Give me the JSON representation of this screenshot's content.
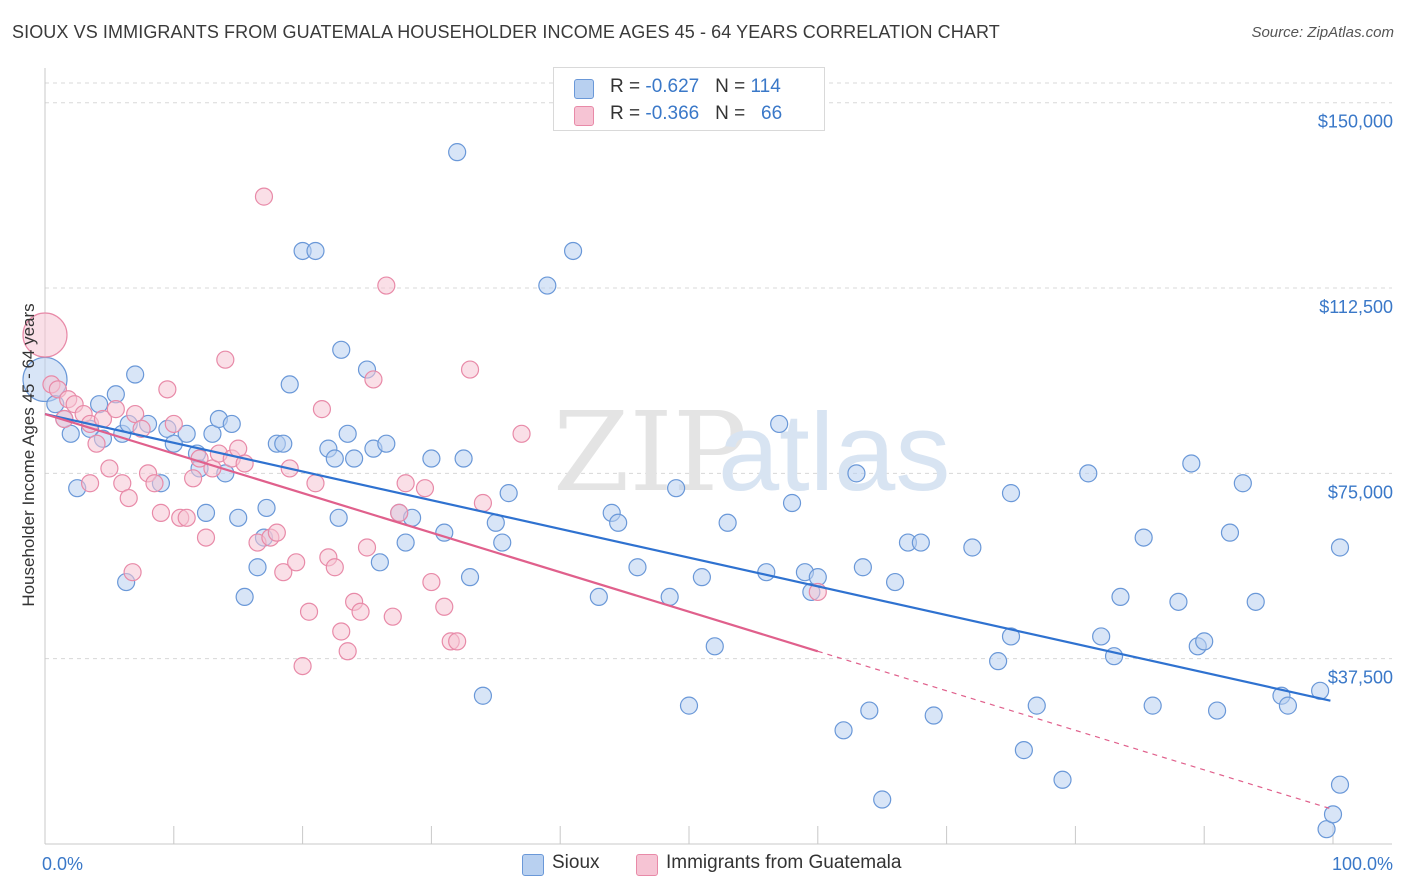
{
  "header": {
    "title": "SIOUX VS IMMIGRANTS FROM GUATEMALA HOUSEHOLDER INCOME AGES 45 - 64 YEARS CORRELATION CHART",
    "source": "Source: ZipAtlas.com"
  },
  "watermark": {
    "zip": "ZIP",
    "atlas": "atlas"
  },
  "legend_top": [
    {
      "r_label": "R = ",
      "r_value": "-0.627",
      "n_label": "N = ",
      "n_value": "114"
    },
    {
      "r_label": "R = ",
      "r_value": "-0.366",
      "n_label": "N = ",
      "n_value": "66"
    }
  ],
  "legend_bottom": [
    "Sioux",
    "Immigrants from Guatemala"
  ],
  "colors": {
    "sioux_fill": "#b8d0f0",
    "sioux_stroke": "#6a98d8",
    "sioux_line": "#2f72d0",
    "guat_fill": "#f6c4d4",
    "guat_stroke": "#e88aa8",
    "guat_line": "#e0608c",
    "tick": "#3a78c8",
    "grid": "#d8d8d8"
  },
  "chart_data": {
    "type": "scatter",
    "title": "SIOUX VS IMMIGRANTS FROM GUATEMALA HOUSEHOLDER INCOME AGES 45 - 64 YEARS CORRELATION CHART",
    "xlabel": "",
    "ylabel": "Householder Income Ages 45 - 64 years",
    "xlim": [
      0,
      100
    ],
    "ylim": [
      0,
      155000
    ],
    "x_tick_labels": [
      "0.0%",
      "100.0%"
    ],
    "y_ticks": [
      37500,
      75000,
      112500,
      150000
    ],
    "y_tick_labels": [
      "$37,500",
      "$75,000",
      "$112,500",
      "$150,000"
    ],
    "grid": true,
    "legend_position": "top-center",
    "series": [
      {
        "name": "Sioux",
        "r": -0.627,
        "n": 114,
        "trend": {
          "x": [
            0,
            99.8
          ],
          "y": [
            87000,
            29000
          ]
        },
        "points": [
          [
            0,
            94000,
            30
          ],
          [
            0.8,
            89000,
            12
          ],
          [
            1.5,
            86000,
            12
          ],
          [
            2,
            83000,
            12
          ],
          [
            2.5,
            72000,
            12
          ],
          [
            3.5,
            84000,
            12
          ],
          [
            4.2,
            89000,
            12
          ],
          [
            4.5,
            82000,
            12
          ],
          [
            5.5,
            91000,
            12
          ],
          [
            6,
            83000,
            12
          ],
          [
            6.5,
            85000,
            12
          ],
          [
            6.3,
            53000,
            12
          ],
          [
            7,
            95000,
            12
          ],
          [
            8,
            85000,
            12
          ],
          [
            9,
            73000,
            12
          ],
          [
            9.5,
            84000,
            12
          ],
          [
            10,
            81000,
            12
          ],
          [
            11,
            83000,
            12
          ],
          [
            11.8,
            79000,
            12
          ],
          [
            12,
            76000,
            12
          ],
          [
            12.5,
            67000,
            12
          ],
          [
            13,
            83000,
            12
          ],
          [
            13.5,
            86000,
            12
          ],
          [
            14,
            75000,
            12
          ],
          [
            14.5,
            85000,
            12
          ],
          [
            15,
            66000,
            12
          ],
          [
            15.5,
            50000,
            12
          ],
          [
            16.5,
            56000,
            12
          ],
          [
            17,
            62000,
            12
          ],
          [
            17.2,
            68000,
            12
          ],
          [
            18,
            81000,
            12
          ],
          [
            18.5,
            81000,
            12
          ],
          [
            19,
            93000,
            12
          ],
          [
            20,
            120000,
            12
          ],
          [
            21,
            120000,
            12
          ],
          [
            22,
            80000,
            12
          ],
          [
            22.5,
            78000,
            12
          ],
          [
            22.8,
            66000,
            12
          ],
          [
            23,
            100000,
            12
          ],
          [
            23.5,
            83000,
            12
          ],
          [
            24,
            78000,
            12
          ],
          [
            25,
            96000,
            12
          ],
          [
            25.5,
            80000,
            12
          ],
          [
            26,
            57000,
            12
          ],
          [
            26.5,
            81000,
            12
          ],
          [
            27.5,
            67000,
            12
          ],
          [
            28,
            61000,
            12
          ],
          [
            28.5,
            66000,
            12
          ],
          [
            30,
            78000,
            12
          ],
          [
            31,
            63000,
            12
          ],
          [
            32,
            140000,
            12
          ],
          [
            32.5,
            78000,
            12
          ],
          [
            33,
            54000,
            12
          ],
          [
            34,
            30000,
            12
          ],
          [
            35,
            65000,
            12
          ],
          [
            35.5,
            61000,
            12
          ],
          [
            36,
            71000,
            12
          ],
          [
            39,
            113000,
            12
          ],
          [
            41,
            120000,
            12
          ],
          [
            43,
            50000,
            12
          ],
          [
            44,
            67000,
            12
          ],
          [
            44.5,
            65000,
            12
          ],
          [
            46,
            56000,
            12
          ],
          [
            48.5,
            50000,
            12
          ],
          [
            49,
            72000,
            12
          ],
          [
            50,
            28000,
            12
          ],
          [
            51,
            54000,
            12
          ],
          [
            52,
            40000,
            12
          ],
          [
            53,
            65000,
            12
          ],
          [
            56,
            55000,
            12
          ],
          [
            57,
            85000,
            12
          ],
          [
            58,
            69000,
            12
          ],
          [
            59,
            55000,
            12
          ],
          [
            59.5,
            51000,
            12
          ],
          [
            60,
            54000,
            12
          ],
          [
            62,
            23000,
            12
          ],
          [
            63,
            75000,
            12
          ],
          [
            63.5,
            56000,
            12
          ],
          [
            64,
            27000,
            12
          ],
          [
            65,
            9000,
            12
          ],
          [
            66,
            53000,
            12
          ],
          [
            67,
            61000,
            12
          ],
          [
            68,
            61000,
            12
          ],
          [
            69,
            26000,
            12
          ],
          [
            72,
            60000,
            12
          ],
          [
            74,
            37000,
            12
          ],
          [
            75,
            42000,
            12
          ],
          [
            75,
            71000,
            12
          ],
          [
            76,
            19000,
            12
          ],
          [
            77,
            28000,
            12
          ],
          [
            79,
            13000,
            12
          ],
          [
            81,
            75000,
            12
          ],
          [
            82,
            42000,
            12
          ],
          [
            83,
            38000,
            12
          ],
          [
            83.5,
            50000,
            12
          ],
          [
            85.3,
            62000,
            12
          ],
          [
            86,
            28000,
            12
          ],
          [
            88,
            49000,
            12
          ],
          [
            89,
            77000,
            12
          ],
          [
            89.5,
            40000,
            12
          ],
          [
            90,
            41000,
            12
          ],
          [
            91,
            27000,
            12
          ],
          [
            92,
            63000,
            12
          ],
          [
            93,
            73000,
            12
          ],
          [
            94,
            49000,
            12
          ],
          [
            96,
            30000,
            12
          ],
          [
            96.5,
            28000,
            12
          ],
          [
            99,
            31000,
            12
          ],
          [
            99.5,
            3000,
            12
          ],
          [
            100,
            6000,
            12
          ],
          [
            101,
            60000,
            12
          ],
          [
            103,
            12000,
            12
          ]
        ]
      },
      {
        "name": "Immigrants from Guatemala",
        "r": -0.366,
        "n": 66,
        "trend": {
          "x": [
            0,
            60
          ],
          "y": [
            87000,
            39000
          ]
        },
        "trend_dashed": {
          "x": [
            60,
            100
          ],
          "y": [
            39000,
            7000
          ]
        },
        "points": [
          [
            0,
            103000,
            30
          ],
          [
            0.5,
            93000,
            12
          ],
          [
            1,
            92000,
            12
          ],
          [
            1.5,
            86000,
            12
          ],
          [
            1.8,
            90000,
            12
          ],
          [
            2.3,
            89000,
            12
          ],
          [
            3,
            87000,
            12
          ],
          [
            3.5,
            85000,
            12
          ],
          [
            3.5,
            73000,
            12
          ],
          [
            4,
            81000,
            12
          ],
          [
            4.5,
            86000,
            12
          ],
          [
            5,
            76000,
            12
          ],
          [
            5.5,
            88000,
            12
          ],
          [
            6,
            73000,
            12
          ],
          [
            6.5,
            70000,
            12
          ],
          [
            6.8,
            55000,
            12
          ],
          [
            7,
            87000,
            12
          ],
          [
            7.5,
            84000,
            12
          ],
          [
            8,
            75000,
            12
          ],
          [
            8.5,
            73000,
            12
          ],
          [
            9,
            67000,
            12
          ],
          [
            9.5,
            92000,
            12
          ],
          [
            10,
            85000,
            12
          ],
          [
            10.5,
            66000,
            12
          ],
          [
            11,
            66000,
            12
          ],
          [
            11.5,
            74000,
            12
          ],
          [
            12,
            78000,
            12
          ],
          [
            12.5,
            62000,
            12
          ],
          [
            13,
            76000,
            12
          ],
          [
            13.5,
            79000,
            12
          ],
          [
            14,
            98000,
            12
          ],
          [
            14.5,
            78000,
            12
          ],
          [
            15,
            80000,
            12
          ],
          [
            15.5,
            77000,
            12
          ],
          [
            16.5,
            61000,
            12
          ],
          [
            17,
            131000,
            12
          ],
          [
            17.5,
            62000,
            12
          ],
          [
            18,
            63000,
            12
          ],
          [
            18.5,
            55000,
            12
          ],
          [
            19,
            76000,
            12
          ],
          [
            19.5,
            57000,
            12
          ],
          [
            20,
            36000,
            12
          ],
          [
            20.5,
            47000,
            12
          ],
          [
            21,
            73000,
            12
          ],
          [
            21.5,
            88000,
            12
          ],
          [
            22,
            58000,
            12
          ],
          [
            22.5,
            56000,
            12
          ],
          [
            23,
            43000,
            12
          ],
          [
            23.5,
            39000,
            12
          ],
          [
            24,
            49000,
            12
          ],
          [
            24.5,
            47000,
            12
          ],
          [
            25,
            60000,
            12
          ],
          [
            25.5,
            94000,
            12
          ],
          [
            26.5,
            113000,
            12
          ],
          [
            27,
            46000,
            12
          ],
          [
            27.5,
            67000,
            12
          ],
          [
            28,
            73000,
            12
          ],
          [
            29.5,
            72000,
            12
          ],
          [
            30,
            53000,
            12
          ],
          [
            31,
            48000,
            12
          ],
          [
            31.5,
            41000,
            12
          ],
          [
            32,
            41000,
            12
          ],
          [
            33,
            96000,
            12
          ],
          [
            34,
            69000,
            12
          ],
          [
            37,
            83000,
            12
          ],
          [
            60,
            51000,
            12
          ]
        ]
      }
    ]
  }
}
